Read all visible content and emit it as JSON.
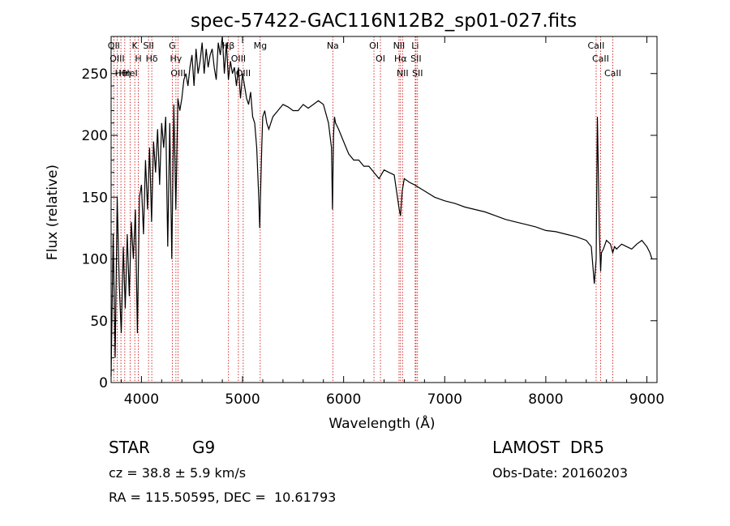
{
  "chart_data": {
    "type": "line",
    "title": "spec-57422-GAC116N12B2_sp01-027.fits",
    "xlabel": "Wavelength (Å)",
    "ylabel": "Flux (relative)",
    "xlim": [
      3700,
      9100
    ],
    "ylim": [
      0,
      280
    ],
    "xticks": [
      4000,
      5000,
      6000,
      7000,
      8000,
      9000
    ],
    "yticks": [
      0,
      50,
      100,
      150,
      200,
      250
    ],
    "grid": false,
    "line_color": "#000000",
    "marker_color": "#cc0000",
    "series": [
      {
        "x": [
          3700,
          3720,
          3740,
          3760,
          3780,
          3800,
          3820,
          3840,
          3860,
          3880,
          3900,
          3920,
          3940,
          3960,
          3980,
          4000,
          4020,
          4040,
          4060,
          4080,
          4100,
          4120,
          4140,
          4160,
          4180,
          4200,
          4220,
          4240,
          4260,
          4280,
          4300,
          4320,
          4340,
          4360,
          4380,
          4400,
          4420,
          4440,
          4460,
          4480,
          4500,
          4520,
          4540,
          4560,
          4580,
          4600,
          4620,
          4640,
          4660,
          4680,
          4700,
          4720,
          4740,
          4760,
          4780,
          4800,
          4820,
          4840,
          4860,
          4880,
          4900,
          4920,
          4940,
          4960,
          4980,
          5000,
          5020,
          5040,
          5060,
          5080,
          5100,
          5120,
          5140,
          5160,
          5170,
          5180,
          5190,
          5200,
          5220,
          5240,
          5260,
          5280,
          5300,
          5350,
          5400,
          5450,
          5500,
          5550,
          5600,
          5650,
          5700,
          5750,
          5800,
          5850,
          5880,
          5890,
          5900,
          5910,
          5920,
          5950,
          6000,
          6050,
          6100,
          6150,
          6200,
          6250,
          6300,
          6350,
          6400,
          6450,
          6500,
          6550,
          6563,
          6580,
          6600,
          6650,
          6700,
          6800,
          6900,
          7000,
          7100,
          7200,
          7300,
          7400,
          7500,
          7600,
          7700,
          7800,
          7900,
          8000,
          8100,
          8200,
          8300,
          8400,
          8450,
          8480,
          8498,
          8510,
          8530,
          8542,
          8550,
          8570,
          8600,
          8640,
          8662,
          8680,
          8700,
          8750,
          8800,
          8850,
          8900,
          8950,
          9000,
          9030,
          9050
        ],
        "values": [
          5,
          120,
          20,
          150,
          80,
          40,
          110,
          60,
          120,
          70,
          130,
          100,
          140,
          40,
          150,
          160,
          120,
          180,
          140,
          190,
          130,
          195,
          170,
          205,
          160,
          210,
          190,
          215,
          110,
          210,
          100,
          225,
          140,
          230,
          220,
          230,
          245,
          250,
          240,
          255,
          265,
          240,
          270,
          250,
          260,
          275,
          250,
          270,
          255,
          265,
          270,
          255,
          245,
          275,
          265,
          280,
          250,
          275,
          245,
          260,
          250,
          255,
          240,
          255,
          230,
          250,
          240,
          230,
          225,
          235,
          215,
          210,
          190,
          150,
          125,
          160,
          190,
          215,
          220,
          210,
          205,
          210,
          215,
          220,
          225,
          223,
          220,
          220,
          225,
          222,
          225,
          228,
          225,
          210,
          190,
          140,
          200,
          215,
          210,
          205,
          195,
          185,
          180,
          180,
          175,
          175,
          170,
          165,
          172,
          170,
          168,
          140,
          135,
          155,
          165,
          162,
          160,
          155,
          150,
          147,
          145,
          142,
          140,
          138,
          135,
          132,
          130,
          128,
          126,
          123,
          122,
          120,
          118,
          115,
          110,
          80,
          100,
          215,
          120,
          90,
          105,
          108,
          115,
          112,
          105,
          110,
          108,
          112,
          110,
          108,
          112,
          115,
          110,
          105,
          100
        ]
      }
    ],
    "line_markers": [
      {
        "label": "Hθ",
        "x": 3797
      },
      {
        "label": "OII",
        "x": 3727
      },
      {
        "label": "OIII",
        "x": 3760
      },
      {
        "label": "Hη",
        "x": 3835
      },
      {
        "label": "HeI",
        "x": 3889
      },
      {
        "label": "K",
        "x": 3934
      },
      {
        "label": "H",
        "x": 3969
      },
      {
        "label": "SII",
        "x": 4070
      },
      {
        "label": "Hδ",
        "x": 4102
      },
      {
        "label": "G",
        "x": 4305
      },
      {
        "label": "OIII",
        "x": 4363
      },
      {
        "label": "Hγ",
        "x": 4341
      },
      {
        "label": "Hβ",
        "x": 4861
      },
      {
        "label": "OIII",
        "x": 5007
      },
      {
        "label": "OIII",
        "x": 4959
      },
      {
        "label": "Mg",
        "x": 5175
      },
      {
        "label": "Na",
        "x": 5893
      },
      {
        "label": "OI",
        "x": 6300
      },
      {
        "label": "OI",
        "x": 6364
      },
      {
        "label": "Hα",
        "x": 6563
      },
      {
        "label": "NII",
        "x": 6548
      },
      {
        "label": "NII",
        "x": 6583
      },
      {
        "label": "SII",
        "x": 6716
      },
      {
        "label": "Li",
        "x": 6708
      },
      {
        "label": "SII",
        "x": 6731
      },
      {
        "label": "CaII",
        "x": 8542
      },
      {
        "label": "CaII",
        "x": 8498
      },
      {
        "label": "CaII",
        "x": 8662
      }
    ]
  },
  "info": {
    "object_class": "STAR",
    "subclass": "G9",
    "survey": "LAMOST  DR5",
    "cz": "cz = 38.8 ± 5.9 km/s",
    "obs_date": "Obs-Date: 20160203",
    "coords": "RA = 115.50595, DEC =  10.61793"
  }
}
